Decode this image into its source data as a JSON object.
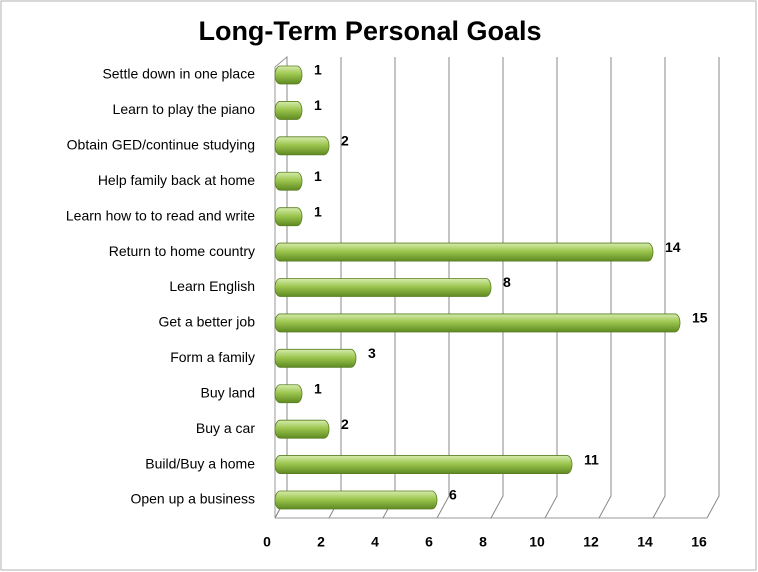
{
  "chart_data": {
    "type": "barh",
    "title": "Long-Term Personal Goals",
    "categories": [
      "Settle down in one place",
      "Learn to play the piano",
      "Obtain GED/continue studying",
      "Help family back at home",
      "Learn how to to read and write",
      "Return to home country",
      "Learn English",
      "Get a better job",
      "Form a family",
      "Buy land",
      "Buy a car",
      "Build/Buy a home",
      "Open up a business"
    ],
    "values": [
      1,
      1,
      2,
      1,
      1,
      14,
      8,
      15,
      3,
      1,
      2,
      11,
      6
    ],
    "color": "#8cb43c",
    "xlim": [
      0,
      16
    ],
    "xticks": [
      0,
      2,
      4,
      6,
      8,
      10,
      12,
      14,
      16
    ],
    "grid": true
  }
}
